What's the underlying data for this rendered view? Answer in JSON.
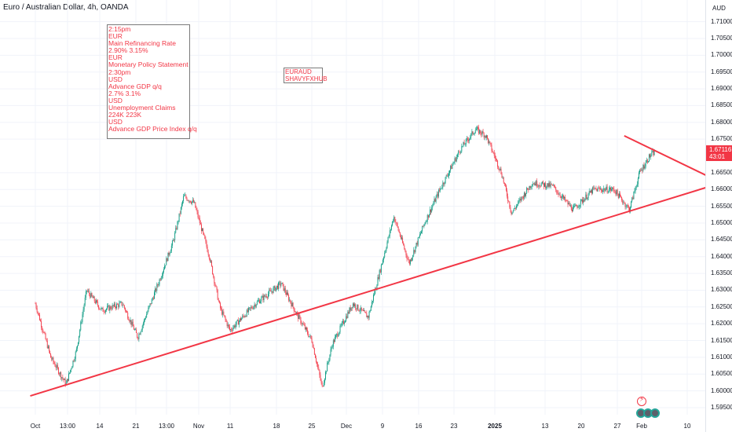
{
  "header": {
    "title": "Euro / Australian Dollar, 4h, OANDA"
  },
  "price_axis": {
    "currency": "AUD",
    "ticks": [
      "1.71000",
      "1.70500",
      "1.70000",
      "1.69500",
      "1.69000",
      "1.68500",
      "1.68000",
      "1.67500",
      "1.66500",
      "1.66000",
      "1.65500",
      "1.65000",
      "1.64500",
      "1.64000",
      "1.63500",
      "1.63000",
      "1.62500",
      "1.62000",
      "1.61500",
      "1.61000",
      "1.60500",
      "1.60000",
      "1.59500"
    ],
    "last_price": "1.67116",
    "countdown": "43:01"
  },
  "time_axis": {
    "labels": [
      {
        "text": "Oct",
        "bold": false
      },
      {
        "text": "13:00",
        "bold": false
      },
      {
        "text": "14",
        "bold": false
      },
      {
        "text": "21",
        "bold": false
      },
      {
        "text": "13:00",
        "bold": false
      },
      {
        "text": "Nov",
        "bold": false
      },
      {
        "text": "11",
        "bold": false
      },
      {
        "text": "18",
        "bold": false
      },
      {
        "text": "25",
        "bold": false
      },
      {
        "text": "Dec",
        "bold": false
      },
      {
        "text": "9",
        "bold": false
      },
      {
        "text": "16",
        "bold": false
      },
      {
        "text": "23",
        "bold": false
      },
      {
        "text": "2025",
        "bold": true
      },
      {
        "text": "13",
        "bold": false
      },
      {
        "text": "20",
        "bold": false
      },
      {
        "text": "27",
        "bold": false
      },
      {
        "text": "Feb",
        "bold": false
      },
      {
        "text": "10",
        "bold": false
      }
    ]
  },
  "events": {
    "lines": [
      "2:15pm",
      "EUR",
      "Main Refinancing Rate",
      "2.90% 3.15%",
      "EUR",
      "Monetary Policy Statement",
      "2:30pm",
      "USD",
      "Advance GDP q/q",
      "2.7% 3.1%",
      "USD",
      "Unemployment Claims",
      "224K 223K",
      "USD",
      "Advance GDP Price Index q/q"
    ]
  },
  "watermark": {
    "line1": "EURAUD",
    "line2": "SHAVYFXHUB"
  },
  "colors": {
    "up": "#089981",
    "down": "#f23645",
    "trendline": "#f23645",
    "grid": "#f0f3fa",
    "text": "#131722"
  },
  "icons": [
    "lightning-icon",
    "event-icon-1",
    "event-icon-2",
    "event-icon-3"
  ],
  "chart_data": {
    "type": "candlestick",
    "symbol": "EURAUD",
    "timeframe": "4h",
    "ylim": [
      1.595,
      1.71
    ],
    "last": 1.67116,
    "approx_path": [
      {
        "d": "Oct 1",
        "p": 1.626
      },
      {
        "d": "Oct 4",
        "p": 1.61
      },
      {
        "d": "Oct 7",
        "p": 1.602
      },
      {
        "d": "Oct 9",
        "p": 1.612
      },
      {
        "d": "Oct 11",
        "p": 1.63
      },
      {
        "d": "Oct 14",
        "p": 1.624
      },
      {
        "d": "Oct 18",
        "p": 1.626
      },
      {
        "d": "Oct 21",
        "p": 1.616
      },
      {
        "d": "Oct 25",
        "p": 1.632
      },
      {
        "d": "Oct 28",
        "p": 1.645
      },
      {
        "d": "Oct 30",
        "p": 1.658
      },
      {
        "d": "Nov 1",
        "p": 1.656
      },
      {
        "d": "Nov 4",
        "p": 1.64
      },
      {
        "d": "Nov 6",
        "p": 1.625
      },
      {
        "d": "Nov 8",
        "p": 1.618
      },
      {
        "d": "Nov 13",
        "p": 1.626
      },
      {
        "d": "Nov 18",
        "p": 1.632
      },
      {
        "d": "Nov 21",
        "p": 1.623
      },
      {
        "d": "Nov 24",
        "p": 1.615
      },
      {
        "d": "Nov 26",
        "p": 1.601
      },
      {
        "d": "Nov 28",
        "p": 1.614
      },
      {
        "d": "Dec 2",
        "p": 1.626
      },
      {
        "d": "Dec 5",
        "p": 1.622
      },
      {
        "d": "Dec 8",
        "p": 1.64
      },
      {
        "d": "Dec 10",
        "p": 1.652
      },
      {
        "d": "Dec 13",
        "p": 1.638
      },
      {
        "d": "Dec 16",
        "p": 1.65
      },
      {
        "d": "Dec 19",
        "p": 1.66
      },
      {
        "d": "Dec 23",
        "p": 1.672
      },
      {
        "d": "Dec 26",
        "p": 1.678
      },
      {
        "d": "Dec 28",
        "p": 1.676
      },
      {
        "d": "Dec 31",
        "p": 1.665
      },
      {
        "d": "Jan 2",
        "p": 1.653
      },
      {
        "d": "Jan 6",
        "p": 1.662
      },
      {
        "d": "Jan 10",
        "p": 1.661
      },
      {
        "d": "Jan 14",
        "p": 1.654
      },
      {
        "d": "Jan 18",
        "p": 1.66
      },
      {
        "d": "Jan 22",
        "p": 1.66
      },
      {
        "d": "Jan 25",
        "p": 1.654
      },
      {
        "d": "Jan 27",
        "p": 1.665
      },
      {
        "d": "Jan 29",
        "p": 1.67
      },
      {
        "d": "Jan 30",
        "p": 1.6712
      }
    ],
    "trendlines": [
      {
        "name": "support",
        "from": {
          "d": "Sep 30",
          "p": 1.5985
        },
        "to": {
          "d": "Feb 12",
          "p": 1.662
        }
      },
      {
        "name": "resistance",
        "from": {
          "d": "Jan 24",
          "p": 1.676
        },
        "to": {
          "d": "Feb 12",
          "p": 1.662
        }
      }
    ]
  }
}
